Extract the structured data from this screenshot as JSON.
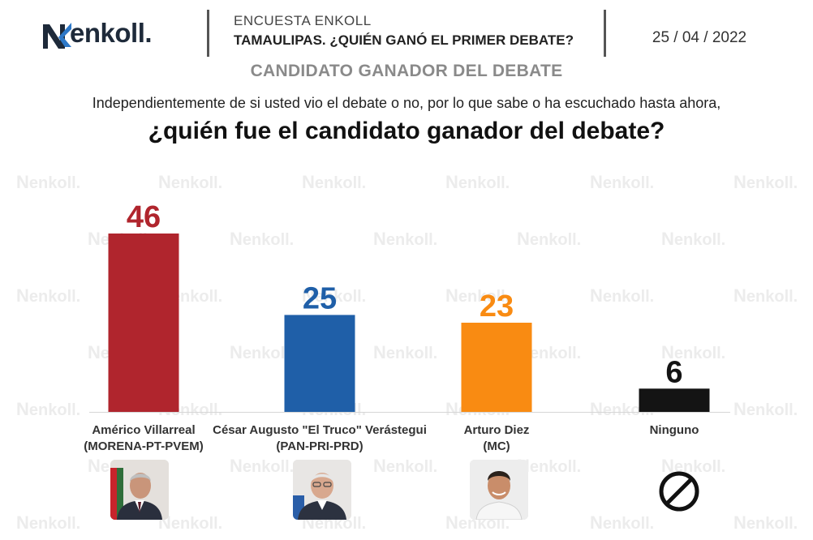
{
  "brand": {
    "name": "enkoll."
  },
  "header": {
    "survey_label": "ENCUESTA ENKOLL",
    "survey_title": "TAMAULIPAS. ¿QUIÉN GANÓ EL PRIMER DEBATE?",
    "date": "25 / 04 / 2022"
  },
  "section_title": "CANDIDATO GANADOR DEL DEBATE",
  "question": {
    "intro": "Independientemente de si usted vio el debate o no, por lo que sabe o ha escuchado hasta ahora,",
    "main": "¿quién fue el candidato ganador del debate?"
  },
  "watermark_text": "enkoll.",
  "candidates": [
    {
      "name": "Américo Villarreal",
      "party": "(MORENA-PT-PVEM)",
      "photo": "candidate-photo"
    },
    {
      "name": "César Augusto \"El Truco\" Verástegui",
      "party": "(PAN-PRI-PRD)",
      "photo": "candidate-photo"
    },
    {
      "name": "Arturo Diez",
      "party": "(MC)",
      "photo": "candidate-photo"
    },
    {
      "name": "Ninguno",
      "party": "",
      "photo": "no-symbol-icon"
    }
  ],
  "chart_data": {
    "type": "bar",
    "categories": [
      "Américo Villarreal (MORENA-PT-PVEM)",
      "César Augusto \"El Truco\" Verástegui (PAN-PRI-PRD)",
      "Arturo Diez (MC)",
      "Ninguno"
    ],
    "values": [
      46,
      25,
      23,
      6
    ],
    "colors": [
      "#b0252d",
      "#1f5fa8",
      "#f98b12",
      "#141414"
    ],
    "value_label_colors": [
      "#b0252d",
      "#1f5fa8",
      "#f98b12",
      "#141414"
    ],
    "title": "CANDIDATO GANADOR DEL DEBATE",
    "xlabel": "",
    "ylabel": "",
    "ylim": [
      0,
      50
    ],
    "grid": false,
    "legend": "none",
    "data_labels": true
  }
}
